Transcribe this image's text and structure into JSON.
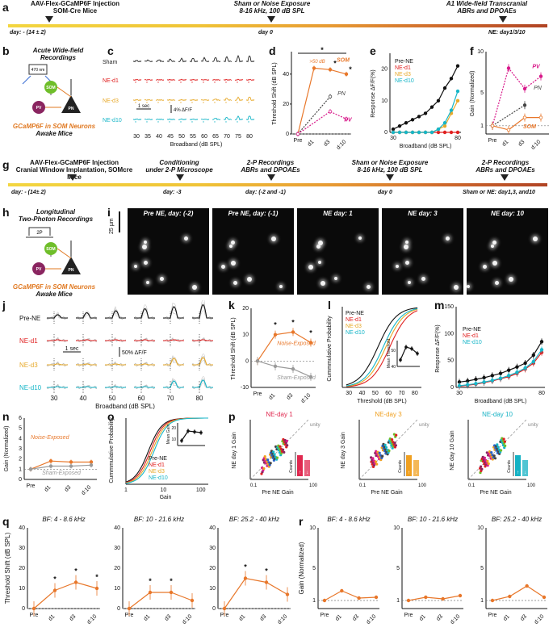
{
  "panels": {
    "a": "a",
    "b": "b",
    "c": "c",
    "d": "d",
    "e": "e",
    "f": "f",
    "g": "g",
    "h": "h",
    "i": "i",
    "j": "j",
    "k": "k",
    "l": "l",
    "m": "m",
    "n": "n",
    "o": "o",
    "p": "p",
    "q": "q",
    "r": "r"
  },
  "timeline_a": {
    "ev1_line1": "AAV-Flex-GCaMP6F Injection",
    "ev1_line2": "SOM-Cre Mice",
    "ev2_line1": "Sham or Noise Exposure",
    "ev2_line2": "8-16 kHz, 100 dB SPL",
    "ev3_line1": "A1 Wide-field Transcranial",
    "ev3_line2": "ABRs and DPOAEs",
    "day1": "day: - (14 ± 2)",
    "day2": "day 0",
    "day3": "NE: day1/3/10"
  },
  "timeline_g": {
    "ev1_line1": "AAV-Flex-GCaMP6F Injection",
    "ev1_line2": "Cranial Window Implantation, SOMcre Mice",
    "ev2_line1": "Conditioning",
    "ev2_line2": "under 2-P Microscope",
    "ev3_line1": "2-P Recordings",
    "ev3_line2": "ABRs and DPOAEs",
    "ev4_line1": "Sham or Noise Exposure",
    "ev4_line2": "8-16 kHz, 100 dB SPL",
    "ev5_line1": "2-P Recordings",
    "ev5_line2": "ABRs and DPOAEs",
    "day1": "day: - (14± 2)",
    "day2": "day: -3",
    "day3": "day: (-2 and -1)",
    "day4": "day 0",
    "day5": "Sham or NE: day1,3, and10"
  },
  "panel_b": {
    "title1": "Acute Wide-field",
    "title2": "Recordings",
    "led": "470 nm",
    "som": "SOM",
    "pv": "PV",
    "pn": "PN",
    "caption1": "GCaMP6F in SOM Neurons",
    "caption2": "Awake Mice"
  },
  "panel_h": {
    "title1": "Longitudinal",
    "title2": "Two-Photon Recordings",
    "scope": "2P",
    "som": "SOM",
    "pv": "PV",
    "pn": "PN",
    "caption1": "GCaMP6F in SOM Neurons",
    "caption2": "Awake Mice"
  },
  "panel_c": {
    "rows": [
      "Sham",
      "NE-d1",
      "NE-d3",
      "NE-d10"
    ],
    "ticks": [
      "30",
      "35",
      "40",
      "45",
      "50",
      "55",
      "60",
      "65",
      "70",
      "75",
      "80"
    ],
    "xlabel": "Broadband (dB SPL)",
    "scale_time": "1 sec",
    "scale_amp": "4% ΔF/F"
  },
  "panel_d": {
    "ylabel": "Threshold Shift (dB SPL)",
    "xticks": [
      "Pre",
      "d1",
      "d3",
      "d:10"
    ],
    "yticks": [
      "0",
      "20",
      "40"
    ],
    "ann_big": ">50 dB",
    "som": "SOM",
    "pn": "PN",
    "pv": "PV",
    "star": "*"
  },
  "panel_e": {
    "ylabel": "Response ΔF/F(%)",
    "xlabel": "Broadband (dB SPL)",
    "yticks": [
      "0",
      "10",
      "20"
    ],
    "xticks": [
      "30",
      "80"
    ],
    "legend": [
      "Pre-NE",
      "NE-d1",
      "NE-d3",
      "NE-d10"
    ]
  },
  "panel_f": {
    "ylabel": "Gain (Normalized)",
    "xticks": [
      "Pre",
      "d1",
      "d3",
      "d:10"
    ],
    "yticks": [
      "1",
      "5",
      "10"
    ],
    "pv": "PV",
    "pn": "PN",
    "som": "SOM"
  },
  "panel_i": {
    "titles": [
      "Pre NE, day: (-2)",
      "Pre NE, day: (-1)",
      "NE day: 1",
      "NE day: 3",
      "NE day: 10"
    ],
    "scale": "25 µm"
  },
  "panel_j": {
    "rows": [
      "Pre-NE",
      "NE-d1",
      "NE-d3",
      "NE-d10"
    ],
    "ticks": [
      "30",
      "40",
      "50",
      "60",
      "70",
      "80"
    ],
    "xlabel": "Broadband (dB SPL)",
    "scale_time": "1 sec",
    "scale_amp": "50% ΔF/F"
  },
  "panel_k": {
    "ylabel": "Threshold Shift (dB SPL)",
    "xticks": [
      "Pre",
      "d1",
      "d3",
      "d:10"
    ],
    "yticks": [
      "-10",
      "0",
      "10",
      "20"
    ],
    "noise": "Noise-Exposed",
    "sham": "Sham-Exposed",
    "star": "*"
  },
  "panel_l": {
    "ylabel": "Cummmulative Probability",
    "xlabel": "Threshold (dB SPL)",
    "xticks": [
      "30",
      "40",
      "50",
      "60",
      "70",
      "80"
    ],
    "legend": [
      "Pre-NE",
      "NE-d1",
      "NE-d3",
      "NE-d10"
    ],
    "inset_ylabel": "Mean Threshold",
    "inset_yticks": [
      "40",
      "50"
    ]
  },
  "panel_m": {
    "ylabel": "Response ΔF/F(%)",
    "xlabel": "Broadband (dB SPL)",
    "yticks": [
      "0",
      "50",
      "100",
      "150"
    ],
    "xticks": [
      "30",
      "80"
    ],
    "legend": [
      "Pre-NE",
      "NE-d1",
      "NE-d10"
    ]
  },
  "panel_n": {
    "ylabel": "Gain (Normalized)",
    "xticks": [
      "Pre",
      "d1",
      "d3",
      "d:10"
    ],
    "yticks": [
      "0",
      "1",
      "2",
      "3",
      "4",
      "5",
      "6"
    ],
    "noise": "Noise-Exposed",
    "sham": "Sham-Exposed"
  },
  "panel_o": {
    "ylabel": "Cummmulative Probability",
    "xlabel": "Gain",
    "xticks": [
      "1",
      "10",
      "100"
    ],
    "legend": [
      "Pre-NE",
      "NE-d1",
      "NE-d3",
      "NE-d10"
    ],
    "inset_ylabel": "Mean Gain",
    "inset_yticks": [
      "10",
      "20"
    ]
  },
  "panel_p": {
    "plots": [
      {
        "title": "NE-day 1",
        "ylabel": "NE day 1 Gain",
        "color": "#e0284f"
      },
      {
        "title": "NE-day 3",
        "ylabel": "NE day 3 Gain",
        "color": "#f0a020"
      },
      {
        "title": "NE-day 10",
        "ylabel": "NE day 10 Gain",
        "color": "#15b2c4"
      }
    ],
    "xlabel": "Pre NE Gain",
    "unity": "unity",
    "ticks": [
      "0.1",
      "100"
    ],
    "counts": "Counts",
    "count_ticks": [
      "0",
      "50"
    ]
  },
  "panel_q": {
    "ylabel": "Threshold Shift (dB SPL)",
    "titles": [
      "BF: 4 - 8.6 kHz",
      "BF: 10 - 21.6 kHz",
      "BF: 25.2 - 40 kHz"
    ],
    "xticks": [
      "Pre",
      "d1",
      "d3",
      "d:10"
    ],
    "yticks": [
      "0",
      "10",
      "20",
      "30",
      "40"
    ],
    "star": "*"
  },
  "panel_r": {
    "ylabel": "Gain (Normalized)",
    "titles": [
      "BF: 4 - 8.6 kHz",
      "BF: 10 - 21.6 kHz",
      "BF: 25.2 - 40 kHz"
    ],
    "xticks": [
      "Pre",
      "d1",
      "d3",
      "d:10"
    ],
    "yticks": [
      "1",
      "5",
      "10"
    ]
  },
  "colors": {
    "orange": "#e8772a",
    "red": "#e02020",
    "gold": "#e7a92a",
    "cyan": "#17b6c8",
    "magenta": "#d8198a",
    "gray": "#9a9a9a",
    "green": "#6fbe2a",
    "purple": "#8a2560"
  },
  "chart_data": [
    {
      "id": "d",
      "type": "line",
      "categories": [
        "Pre",
        "d1",
        "d3",
        "d:10"
      ],
      "series": [
        {
          "name": "SOM",
          "values": [
            0,
            44,
            43,
            40
          ]
        },
        {
          "name": "PN",
          "values": [
            0,
            null,
            25,
            null
          ]
        },
        {
          "name": "PV",
          "values": [
            0,
            null,
            15,
            10
          ]
        }
      ],
      "ylim": [
        0,
        55
      ]
    },
    {
      "id": "e",
      "type": "line",
      "x": [
        30,
        35,
        40,
        45,
        50,
        55,
        60,
        65,
        70,
        75,
        80
      ],
      "series": [
        {
          "name": "Pre-NE",
          "values": [
            1,
            2,
            3,
            4,
            5,
            6,
            8,
            10,
            14,
            17,
            21
          ]
        },
        {
          "name": "NE-d1",
          "values": [
            0,
            0,
            0,
            0,
            0,
            0,
            0,
            0,
            0,
            0,
            0
          ]
        },
        {
          "name": "NE-d3",
          "values": [
            0,
            0,
            0,
            0,
            0,
            0,
            0,
            1,
            2,
            6,
            10
          ]
        },
        {
          "name": "NE-d10",
          "values": [
            0,
            0,
            0,
            0,
            0,
            0,
            0,
            1,
            3,
            7,
            13
          ]
        }
      ],
      "ylim": [
        0,
        25
      ]
    },
    {
      "id": "f",
      "type": "line",
      "categories": [
        "Pre",
        "d1",
        "d3",
        "d:10"
      ],
      "series": [
        {
          "name": "PV",
          "values": [
            1,
            8,
            5.5,
            7
          ]
        },
        {
          "name": "PN",
          "values": [
            1,
            null,
            3.5,
            null
          ]
        },
        {
          "name": "SOM",
          "values": [
            1,
            0.5,
            2,
            2
          ]
        }
      ],
      "ylim": [
        0,
        10
      ]
    },
    {
      "id": "k",
      "type": "line",
      "categories": [
        "Pre",
        "d1",
        "d3",
        "d:10"
      ],
      "series": [
        {
          "name": "Noise-Exposed",
          "values": [
            0,
            10,
            11,
            7
          ]
        },
        {
          "name": "Sham-Exposed",
          "values": [
            0,
            -2,
            -3,
            -6
          ]
        }
      ],
      "ylim": [
        -10,
        20
      ]
    },
    {
      "id": "m",
      "type": "line",
      "x": [
        30,
        35,
        40,
        45,
        50,
        55,
        60,
        65,
        70,
        75,
        80
      ],
      "series": [
        {
          "name": "Pre-NE",
          "values": [
            10,
            12,
            15,
            18,
            22,
            26,
            32,
            38,
            45,
            60,
            85
          ]
        },
        {
          "name": "NE-d1",
          "values": [
            2,
            4,
            6,
            9,
            12,
            16,
            20,
            26,
            34,
            45,
            65
          ]
        },
        {
          "name": "NE-d10",
          "values": [
            3,
            5,
            7,
            10,
            13,
            17,
            22,
            28,
            36,
            48,
            70
          ]
        }
      ],
      "ylim": [
        0,
        150
      ]
    },
    {
      "id": "n",
      "type": "line",
      "categories": [
        "Pre",
        "d1",
        "d3",
        "d:10"
      ],
      "series": [
        {
          "name": "Noise-Exposed",
          "values": [
            1,
            1.8,
            1.7,
            1.7
          ]
        },
        {
          "name": "Sham-Exposed",
          "values": [
            1,
            1.3,
            1.3,
            1.4
          ]
        }
      ],
      "ylim": [
        0,
        6
      ]
    },
    {
      "id": "q1",
      "type": "line",
      "categories": [
        "Pre",
        "d1",
        "d3",
        "d:10"
      ],
      "values": [
        0,
        9,
        13,
        10
      ],
      "ylim": [
        0,
        40
      ]
    },
    {
      "id": "q2",
      "type": "line",
      "categories": [
        "Pre",
        "d1",
        "d3",
        "d:10"
      ],
      "values": [
        0,
        8,
        8,
        4
      ],
      "ylim": [
        0,
        40
      ]
    },
    {
      "id": "q3",
      "type": "line",
      "categories": [
        "Pre",
        "d1",
        "d3",
        "d:10"
      ],
      "values": [
        0,
        15,
        13,
        7
      ],
      "ylim": [
        0,
        40
      ]
    },
    {
      "id": "r1",
      "type": "line",
      "categories": [
        "Pre",
        "d1",
        "d3",
        "d:10"
      ],
      "values": [
        1,
        2.2,
        1.3,
        1.4
      ],
      "ylim": [
        0,
        10
      ]
    },
    {
      "id": "r2",
      "type": "line",
      "categories": [
        "Pre",
        "d1",
        "d3",
        "d:10"
      ],
      "values": [
        1,
        1.4,
        1.2,
        1.6
      ],
      "ylim": [
        0,
        10
      ]
    },
    {
      "id": "r3",
      "type": "line",
      "categories": [
        "Pre",
        "d1",
        "d3",
        "d:10"
      ],
      "values": [
        1,
        1.5,
        2.8,
        1.4
      ],
      "ylim": [
        0,
        10
      ]
    }
  ]
}
